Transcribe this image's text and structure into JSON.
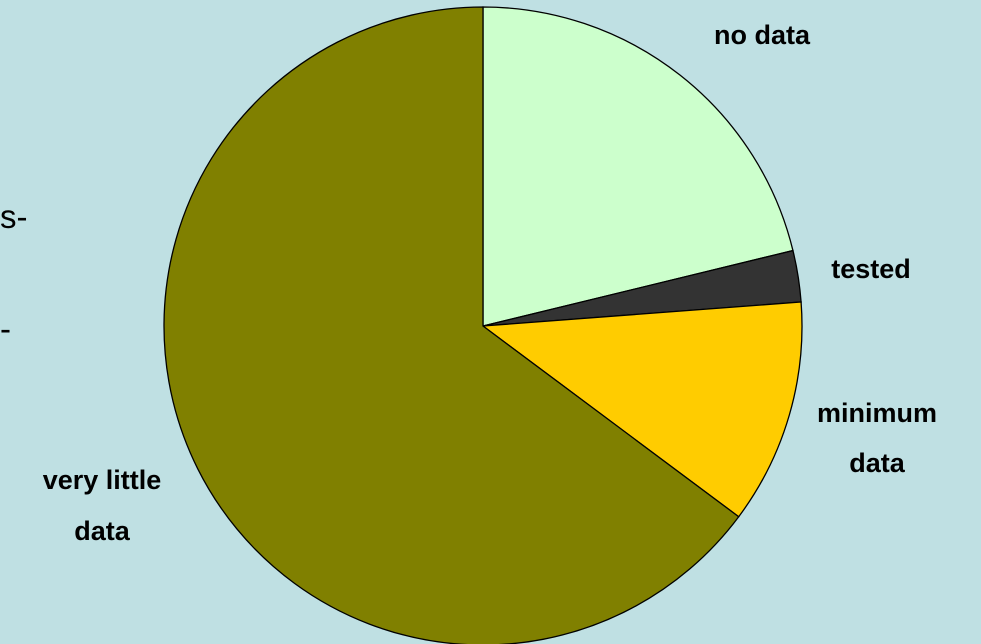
{
  "chart_data": {
    "type": "pie",
    "slices": [
      {
        "label": "no data",
        "value": 21.2,
        "color": "#CCFFCC"
      },
      {
        "label": "tested",
        "value": 2.6,
        "color": "#333333"
      },
      {
        "label": "minimum data",
        "value": 11.4,
        "color": "#FFCC00"
      },
      {
        "label": "very little data",
        "value": 64.8,
        "color": "#808000"
      }
    ],
    "start": "12 o'clock",
    "direction": "clockwise"
  },
  "fragments": {
    "line1": "s-",
    "line2": "-"
  },
  "colors": {
    "background": "#BFE0E3",
    "outline": "#000000"
  }
}
